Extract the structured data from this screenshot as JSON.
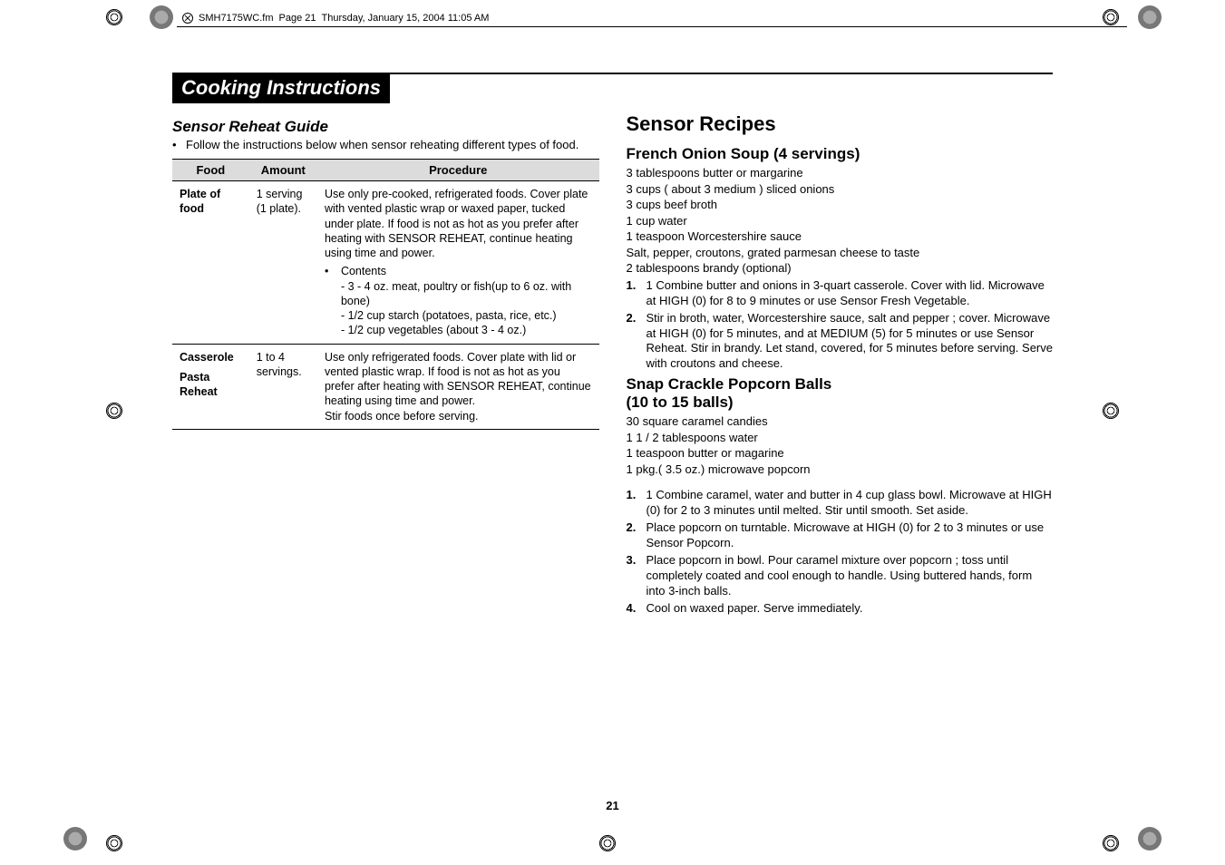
{
  "header": {
    "filename": "SMH7175WC.fm",
    "page": "Page 21",
    "date": "Thursday, January 15, 2004  11:05 AM"
  },
  "section_title": "Cooking Instructions",
  "left": {
    "heading": "Sensor Reheat Guide",
    "bullet": "Follow the instructions below when sensor reheating different types of food.",
    "table": {
      "headers": [
        "Food",
        "Amount",
        "Procedure"
      ],
      "rows": [
        {
          "food": "Plate of food",
          "amount": "1 serving (1 plate).",
          "procedure": "Use only pre-cooked, refrigerated foods. Cover plate with vented plastic wrap or waxed paper, tucked under plate. If food is not as hot as you prefer after heating with SENSOR REHEAT, continue heating using time and power.",
          "contents_label": "Contents",
          "contents": [
            "- 3 - 4 oz. meat, poultry or fish(up to 6 oz. with bone)",
            "- 1/2 cup starch (potatoes, pasta, rice, etc.)",
            "- 1/2 cup vegetables (about 3 - 4 oz.)"
          ]
        },
        {
          "food_a": "Casserole",
          "food_b": "Pasta Reheat",
          "amount": "1 to 4 servings.",
          "procedure": "Use only refrigerated foods. Cover plate with lid or vented plastic wrap. If food is not as hot as you prefer after heating with SENSOR REHEAT, continue heating using time and power.\nStir foods once before serving."
        }
      ]
    }
  },
  "right": {
    "heading": "Sensor Recipes",
    "recipe1": {
      "title": "French Onion Soup (4 servings)",
      "ingredients": [
        "3 tablespoons butter or margarine",
        "3 cups ( about 3 medium ) sliced onions",
        "3 cups beef broth",
        "1 cup water",
        "1 teaspoon Worcestershire sauce",
        "Salt, pepper, croutons, grated parmesan cheese to taste",
        "2 tablespoons brandy (optional)"
      ],
      "steps": [
        "1 Combine butter and onions in 3-quart casserole. Cover with lid. Microwave at HIGH (0) for 8 to 9 minutes or use Sensor Fresh Vegetable.",
        "Stir in broth, water, Worcestershire sauce, salt and pepper ; cover. Microwave at HIGH (0) for 5 minutes, and at MEDIUM (5) for 5 minutes or use Sensor Reheat. Stir in brandy. Let stand, covered, for 5 minutes before serving. Serve with croutons and cheese."
      ]
    },
    "recipe2": {
      "title_a": "Snap Crackle Popcorn Balls",
      "title_b": "(10 to 15 balls)",
      "ingredients": [
        "30 square caramel candies",
        "1 1 / 2 tablespoons water",
        "1 teaspoon butter or magarine",
        "1 pkg.( 3.5 oz.) microwave popcorn"
      ],
      "steps": [
        "1 Combine caramel, water and butter in 4 cup glass bowl. Microwave at HIGH (0) for 2 to 3 minutes until melted. Stir until smooth. Set aside.",
        "Place popcorn on turntable. Microwave at HIGH (0) for 2 to 3 minutes or use Sensor Popcorn.",
        "Place popcorn in bowl. Pour caramel mixture over popcorn ; toss until completely coated and cool enough to handle. Using buttered hands, form into 3-inch balls.",
        "Cool on waxed paper. Serve immediately."
      ]
    }
  },
  "page_number": "21"
}
